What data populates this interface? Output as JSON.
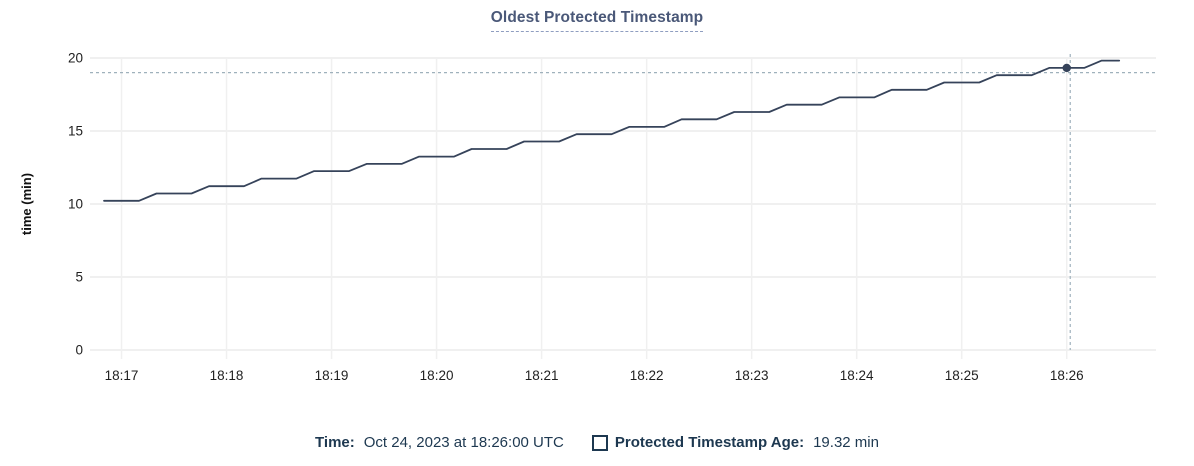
{
  "chart_data": {
    "type": "line",
    "title": "Oldest Protected Timestamp",
    "xlabel": "",
    "ylabel": "time (min)",
    "ylim": [
      0,
      20
    ],
    "yticks": [
      0,
      5,
      10,
      15,
      20
    ],
    "xtick_labels": [
      "18:17",
      "18:18",
      "18:19",
      "18:20",
      "18:21",
      "18:22",
      "18:23",
      "18:24",
      "18:25",
      "18:26"
    ],
    "x_domain": [
      "18:16:42",
      "18:26:51"
    ],
    "grid": true,
    "legend_position": "bottom",
    "series": [
      {
        "name": "Protected Timestamp Age",
        "unit": "min",
        "points": [
          [
            "18:16:50",
            10.22
          ],
          [
            "18:17:00",
            10.22
          ],
          [
            "18:17:10",
            10.22
          ],
          [
            "18:17:20",
            10.72
          ],
          [
            "18:17:30",
            10.72
          ],
          [
            "18:17:40",
            10.72
          ],
          [
            "18:17:50",
            11.22
          ],
          [
            "18:18:00",
            11.22
          ],
          [
            "18:18:10",
            11.22
          ],
          [
            "18:18:20",
            11.74
          ],
          [
            "18:18:30",
            11.74
          ],
          [
            "18:18:40",
            11.74
          ],
          [
            "18:18:50",
            12.25
          ],
          [
            "18:19:00",
            12.25
          ],
          [
            "18:19:10",
            12.25
          ],
          [
            "18:19:20",
            12.75
          ],
          [
            "18:19:30",
            12.75
          ],
          [
            "18:19:40",
            12.75
          ],
          [
            "18:19:50",
            13.25
          ],
          [
            "18:20:00",
            13.25
          ],
          [
            "18:20:10",
            13.25
          ],
          [
            "18:20:20",
            13.77
          ],
          [
            "18:20:30",
            13.77
          ],
          [
            "18:20:40",
            13.77
          ],
          [
            "18:20:50",
            14.28
          ],
          [
            "18:21:00",
            14.28
          ],
          [
            "18:21:10",
            14.28
          ],
          [
            "18:21:20",
            14.78
          ],
          [
            "18:21:30",
            14.78
          ],
          [
            "18:21:40",
            14.78
          ],
          [
            "18:21:50",
            15.28
          ],
          [
            "18:22:00",
            15.28
          ],
          [
            "18:22:10",
            15.28
          ],
          [
            "18:22:20",
            15.8
          ],
          [
            "18:22:30",
            15.8
          ],
          [
            "18:22:40",
            15.8
          ],
          [
            "18:22:50",
            16.3
          ],
          [
            "18:23:00",
            16.3
          ],
          [
            "18:23:10",
            16.3
          ],
          [
            "18:23:20",
            16.8
          ],
          [
            "18:23:30",
            16.8
          ],
          [
            "18:23:40",
            16.8
          ],
          [
            "18:23:50",
            17.3
          ],
          [
            "18:24:00",
            17.3
          ],
          [
            "18:24:10",
            17.3
          ],
          [
            "18:24:20",
            17.82
          ],
          [
            "18:24:30",
            17.82
          ],
          [
            "18:24:40",
            17.82
          ],
          [
            "18:24:50",
            18.32
          ],
          [
            "18:25:00",
            18.32
          ],
          [
            "18:25:10",
            18.32
          ],
          [
            "18:25:20",
            18.82
          ],
          [
            "18:25:30",
            18.82
          ],
          [
            "18:25:40",
            18.82
          ],
          [
            "18:25:50",
            19.32
          ],
          [
            "18:26:00",
            19.32
          ],
          [
            "18:26:10",
            19.32
          ],
          [
            "18:26:20",
            19.82
          ],
          [
            "18:26:30",
            19.82
          ]
        ]
      }
    ],
    "highlight_point": {
      "time": "18:26:00",
      "value": 19.32
    },
    "crosshair": {
      "time": "18:26:02",
      "value": 19.0
    }
  },
  "colors": {
    "line": "#36435a",
    "dot": "#36435a",
    "grid_h": "#ececec",
    "grid_v": "#f0f0f0",
    "crosshair": "#9fb1bc",
    "title_text": "#4a5878",
    "title_underline": "#8f9ec0",
    "tick_label": "#1f1f1f",
    "legend_text": "#1d3850"
  },
  "footer": {
    "time_label": "Time:",
    "time_value": "Oct 24, 2023 at 18:26:00 UTC",
    "age_label": "Protected Timestamp Age:",
    "age_value": "19.32 min"
  }
}
